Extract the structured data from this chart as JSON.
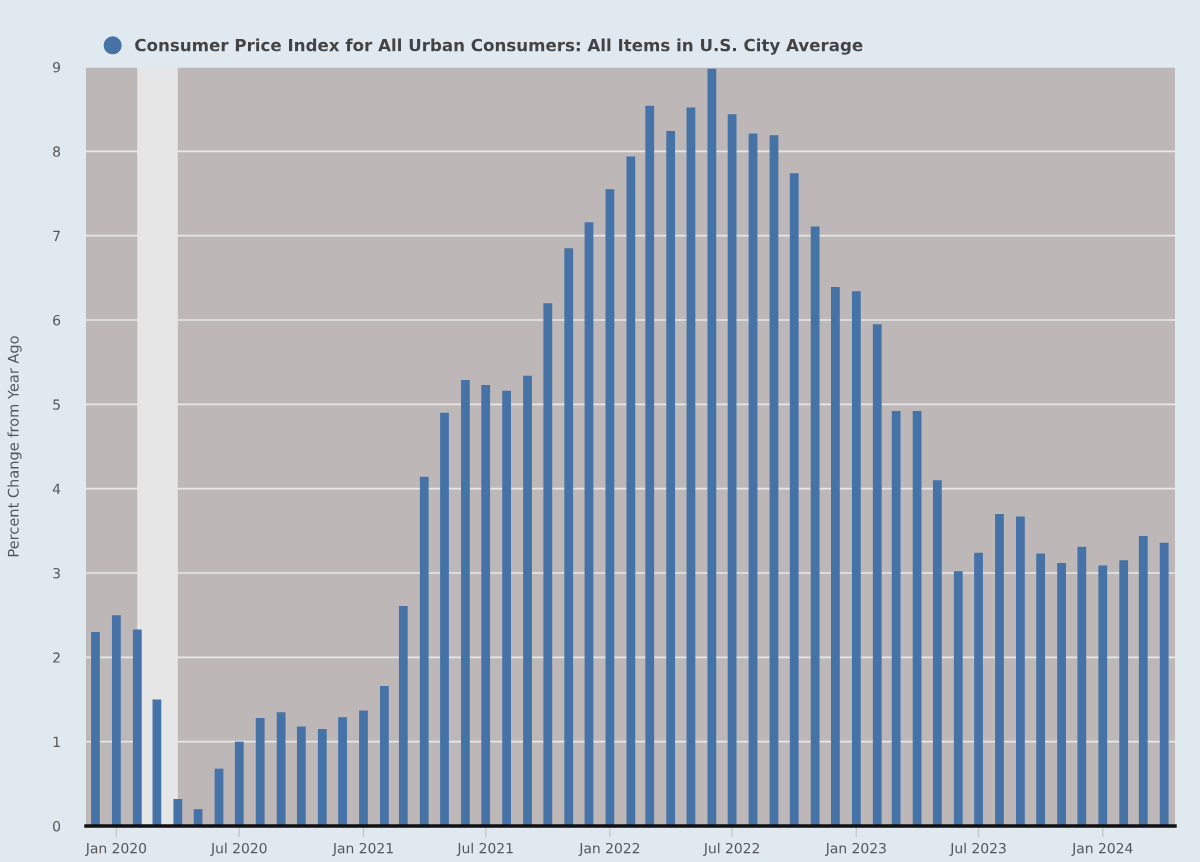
{
  "chart_data": {
    "type": "bar",
    "ylabel": "Percent Change from Year Ago",
    "x": [
      "2019-12",
      "2020-01",
      "2020-02",
      "2020-03",
      "2020-04",
      "2020-05",
      "2020-06",
      "2020-07",
      "2020-08",
      "2020-09",
      "2020-10",
      "2020-11",
      "2020-12",
      "2021-01",
      "2021-02",
      "2021-03",
      "2021-04",
      "2021-05",
      "2021-06",
      "2021-07",
      "2021-08",
      "2021-09",
      "2021-10",
      "2021-11",
      "2021-12",
      "2022-01",
      "2022-02",
      "2022-03",
      "2022-04",
      "2022-05",
      "2022-06",
      "2022-07",
      "2022-08",
      "2022-09",
      "2022-10",
      "2022-11",
      "2022-12",
      "2023-01",
      "2023-02",
      "2023-03",
      "2023-04",
      "2023-05",
      "2023-06",
      "2023-07",
      "2023-08",
      "2023-09",
      "2023-10",
      "2023-11",
      "2023-12",
      "2024-01",
      "2024-02",
      "2024-03",
      "2024-04"
    ],
    "series": [
      {
        "name": "Consumer Price Index for All Urban Consumers: All Items in U.S. City Average",
        "color": "#4572a7",
        "values": [
          2.3,
          2.5,
          2.33,
          1.5,
          0.32,
          0.2,
          0.68,
          1.0,
          1.28,
          1.35,
          1.18,
          1.15,
          1.29,
          1.37,
          1.66,
          2.61,
          4.14,
          4.9,
          5.29,
          5.23,
          5.16,
          5.34,
          6.2,
          6.85,
          7.16,
          7.55,
          7.94,
          8.54,
          8.24,
          8.52,
          8.98,
          8.44,
          8.21,
          8.19,
          7.74,
          7.11,
          6.39,
          6.34,
          5.95,
          4.92,
          4.92,
          4.1,
          3.02,
          3.24,
          3.7,
          3.67,
          3.23,
          3.12,
          3.31,
          3.09,
          3.15,
          3.44,
          3.36
        ]
      }
    ],
    "xlim": [
      "2019-11-17",
      "2024-04-17"
    ],
    "xticks": [
      {
        "value": "2020-01",
        "label": "Jan 2020"
      },
      {
        "value": "2020-07",
        "label": "Jul 2020"
      },
      {
        "value": "2021-01",
        "label": "Jan 2021"
      },
      {
        "value": "2021-07",
        "label": "Jul 2021"
      },
      {
        "value": "2022-01",
        "label": "Jan 2022"
      },
      {
        "value": "2022-07",
        "label": "Jul 2022"
      },
      {
        "value": "2023-01",
        "label": "Jan 2023"
      },
      {
        "value": "2023-07",
        "label": "Jul 2023"
      },
      {
        "value": "2024-01",
        "label": "Jan 2024"
      }
    ],
    "ylim": [
      0,
      9
    ],
    "yticks": [
      0,
      1,
      2,
      3,
      4,
      5,
      6,
      7,
      8,
      9
    ],
    "bands": [
      {
        "axis": "x",
        "from": "2020-02",
        "to": "2020-04",
        "color": "#e6e6e6"
      }
    ],
    "grid": "y",
    "legend": "top left"
  }
}
